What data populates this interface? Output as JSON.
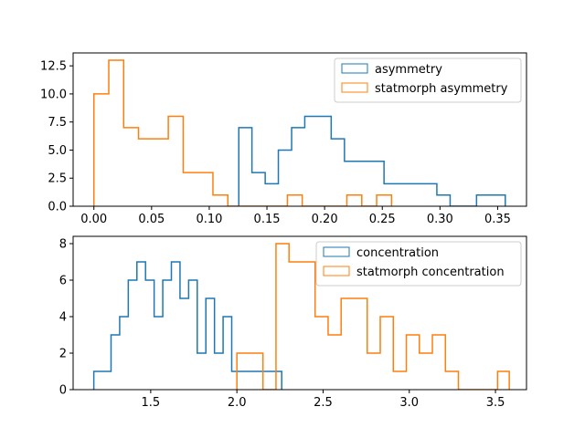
{
  "chart_data": [
    {
      "type": "histogram",
      "xlim": [
        -0.018,
        0.375
      ],
      "ylim": [
        0,
        13.65
      ],
      "xticks": [
        "0.00",
        "0.05",
        "0.10",
        "0.15",
        "0.20",
        "0.25",
        "0.30",
        "0.35"
      ],
      "xtick_values": [
        0.0,
        0.05,
        0.1,
        0.15,
        0.2,
        0.25,
        0.3,
        0.35
      ],
      "yticks": [
        "0.0",
        "2.5",
        "5.0",
        "7.5",
        "10.0",
        "12.5"
      ],
      "ytick_values": [
        0,
        2.5,
        5,
        7.5,
        10,
        12.5
      ],
      "legend_position": "top-right",
      "series": [
        {
          "name": "asymmetry",
          "color": "#1f77b4",
          "bin_edges": [
            0.1256,
            0.137,
            0.1485,
            0.1599,
            0.1714,
            0.1828,
            0.1943,
            0.2057,
            0.2172,
            0.2286,
            0.2401,
            0.2515,
            0.263,
            0.2744,
            0.2859,
            0.2973,
            0.3088,
            0.3202,
            0.3317,
            0.3431,
            0.3546,
            0.3566
          ],
          "counts": [
            7,
            3,
            2,
            5,
            7,
            8,
            8,
            6,
            4,
            4,
            4,
            2,
            2,
            2,
            2,
            1,
            0,
            0,
            1,
            1,
            1
          ]
        },
        {
          "name": "statmorph asymmetry",
          "color": "#ff7f0e",
          "bin_edges": [
            0.0,
            0.0129,
            0.0258,
            0.0387,
            0.0516,
            0.0645,
            0.0774,
            0.0903,
            0.1032,
            0.1161,
            0.129,
            0.1419,
            0.1548,
            0.1677,
            0.1806,
            0.1935,
            0.2064,
            0.2193,
            0.2322,
            0.2451,
            0.258,
            0.2581
          ],
          "counts": [
            10,
            13,
            7,
            6,
            6,
            8,
            3,
            3,
            1,
            0,
            0,
            0,
            0,
            1,
            0,
            0,
            0,
            1,
            0,
            1,
            0
          ]
        }
      ]
    },
    {
      "type": "histogram",
      "xlim": [
        1.05,
        3.68
      ],
      "ylim": [
        0,
        8.4
      ],
      "xticks": [
        "1.5",
        "2.0",
        "2.5",
        "3.0",
        "3.5"
      ],
      "xtick_values": [
        1.5,
        2.0,
        2.5,
        3.0,
        3.5
      ],
      "yticks": [
        "0",
        "2",
        "4",
        "6",
        "8"
      ],
      "ytick_values": [
        0,
        2,
        4,
        6,
        8
      ],
      "legend_position": "top-right",
      "series": [
        {
          "name": "concentration",
          "color": "#1f77b4",
          "bin_edges": [
            1.17,
            1.22,
            1.27,
            1.32,
            1.37,
            1.42,
            1.47,
            1.52,
            1.57,
            1.62,
            1.67,
            1.72,
            1.77,
            1.82,
            1.87,
            1.92,
            1.97,
            2.02,
            2.07,
            2.12,
            2.17,
            2.26
          ],
          "counts": [
            1,
            1,
            3,
            4,
            6,
            7,
            6,
            4,
            6,
            7,
            5,
            6,
            2,
            5,
            2,
            4,
            1,
            1,
            1,
            1,
            1
          ]
        },
        {
          "name": "statmorph concentration",
          "color": "#ff7f0e",
          "bin_edges": [
            2.0,
            2.0756,
            2.1512,
            2.2268,
            2.3024,
            2.378,
            2.4536,
            2.5292,
            2.6048,
            2.6804,
            2.756,
            2.8316,
            2.9072,
            2.9828,
            3.0584,
            3.134,
            3.2096,
            3.2852,
            3.3608,
            3.4364,
            3.512,
            3.58
          ],
          "counts": [
            2,
            2,
            0,
            8,
            7,
            7,
            4,
            3,
            5,
            5,
            2,
            4,
            1,
            3,
            2,
            3,
            1,
            0,
            0,
            0,
            1
          ]
        }
      ]
    }
  ]
}
